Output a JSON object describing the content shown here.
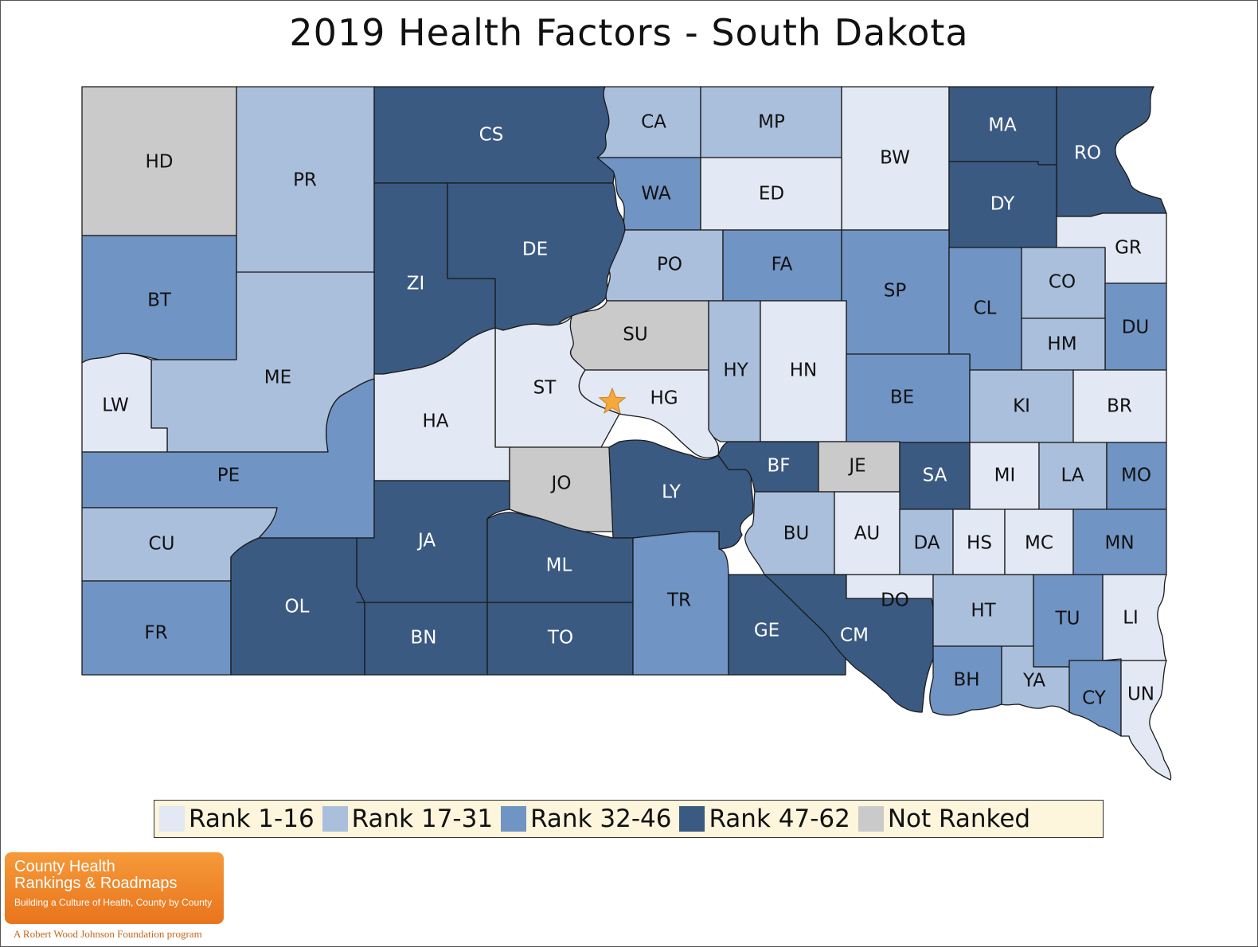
{
  "title": "2019 Health Factors - South Dakota",
  "colors": {
    "rank_1_16": "#e2e9f4",
    "rank_17_31": "#aabfdc",
    "rank_32_46": "#7094c4",
    "rank_47_62": "#3a5a82",
    "not_ranked": "#cacaca"
  },
  "legend": [
    {
      "label": "Rank 1-16",
      "color_key": "rank_1_16"
    },
    {
      "label": "Rank 17-31",
      "color_key": "rank_17_31"
    },
    {
      "label": "Rank 32-46",
      "color_key": "rank_32_46"
    },
    {
      "label": "Rank 47-62",
      "color_key": "rank_47_62"
    },
    {
      "label": "Not Ranked",
      "color_key": "not_ranked"
    }
  ],
  "counties": [
    {
      "abbr": "HD",
      "category": "not_ranked"
    },
    {
      "abbr": "PR",
      "category": "rank_17_31"
    },
    {
      "abbr": "CS",
      "category": "rank_47_62"
    },
    {
      "abbr": "CA",
      "category": "rank_17_31"
    },
    {
      "abbr": "MP",
      "category": "rank_17_31"
    },
    {
      "abbr": "BW",
      "category": "rank_1_16"
    },
    {
      "abbr": "MA",
      "category": "rank_47_62"
    },
    {
      "abbr": "RO",
      "category": "rank_47_62"
    },
    {
      "abbr": "WA",
      "category": "rank_32_46"
    },
    {
      "abbr": "ED",
      "category": "rank_1_16"
    },
    {
      "abbr": "DY",
      "category": "rank_47_62"
    },
    {
      "abbr": "GR",
      "category": "rank_1_16"
    },
    {
      "abbr": "BT",
      "category": "rank_32_46"
    },
    {
      "abbr": "ZI",
      "category": "rank_47_62"
    },
    {
      "abbr": "DE",
      "category": "rank_47_62"
    },
    {
      "abbr": "PO",
      "category": "rank_17_31"
    },
    {
      "abbr": "FA",
      "category": "rank_32_46"
    },
    {
      "abbr": "SP",
      "category": "rank_32_46"
    },
    {
      "abbr": "CL",
      "category": "rank_32_46"
    },
    {
      "abbr": "CO",
      "category": "rank_17_31"
    },
    {
      "abbr": "DU",
      "category": "rank_32_46"
    },
    {
      "abbr": "HM",
      "category": "rank_17_31"
    },
    {
      "abbr": "SU",
      "category": "not_ranked"
    },
    {
      "abbr": "HY",
      "category": "rank_17_31"
    },
    {
      "abbr": "HN",
      "category": "rank_1_16"
    },
    {
      "abbr": "ME",
      "category": "rank_17_31"
    },
    {
      "abbr": "LW",
      "category": "rank_1_16"
    },
    {
      "abbr": "ST",
      "category": "rank_1_16"
    },
    {
      "abbr": "HG",
      "category": "rank_1_16"
    },
    {
      "abbr": "HA",
      "category": "rank_1_16"
    },
    {
      "abbr": "BE",
      "category": "rank_32_46"
    },
    {
      "abbr": "KI",
      "category": "rank_17_31"
    },
    {
      "abbr": "BR",
      "category": "rank_1_16"
    },
    {
      "abbr": "PE",
      "category": "rank_32_46"
    },
    {
      "abbr": "JO",
      "category": "not_ranked"
    },
    {
      "abbr": "LY",
      "category": "rank_47_62"
    },
    {
      "abbr": "BF",
      "category": "rank_47_62"
    },
    {
      "abbr": "JE",
      "category": "not_ranked"
    },
    {
      "abbr": "SA",
      "category": "rank_47_62"
    },
    {
      "abbr": "MI",
      "category": "rank_1_16"
    },
    {
      "abbr": "LA",
      "category": "rank_17_31"
    },
    {
      "abbr": "MO",
      "category": "rank_32_46"
    },
    {
      "abbr": "CU",
      "category": "rank_17_31"
    },
    {
      "abbr": "JA",
      "category": "rank_47_62"
    },
    {
      "abbr": "ML",
      "category": "rank_47_62"
    },
    {
      "abbr": "BU",
      "category": "rank_17_31"
    },
    {
      "abbr": "AU",
      "category": "rank_1_16"
    },
    {
      "abbr": "DA",
      "category": "rank_17_31"
    },
    {
      "abbr": "HS",
      "category": "rank_1_16"
    },
    {
      "abbr": "MC",
      "category": "rank_1_16"
    },
    {
      "abbr": "MN",
      "category": "rank_32_46"
    },
    {
      "abbr": "FR",
      "category": "rank_32_46"
    },
    {
      "abbr": "OL",
      "category": "rank_47_62"
    },
    {
      "abbr": "BN",
      "category": "rank_47_62"
    },
    {
      "abbr": "TO",
      "category": "rank_47_62"
    },
    {
      "abbr": "TR",
      "category": "rank_32_46"
    },
    {
      "abbr": "GE",
      "category": "rank_47_62"
    },
    {
      "abbr": "CM",
      "category": "rank_47_62"
    },
    {
      "abbr": "DO",
      "category": "rank_1_16"
    },
    {
      "abbr": "HT",
      "category": "rank_17_31"
    },
    {
      "abbr": "TU",
      "category": "rank_32_46"
    },
    {
      "abbr": "LI",
      "category": "rank_1_16"
    },
    {
      "abbr": "BH",
      "category": "rank_32_46"
    },
    {
      "abbr": "YA",
      "category": "rank_17_31"
    },
    {
      "abbr": "CY",
      "category": "rank_32_46"
    },
    {
      "abbr": "UN",
      "category": "rank_1_16"
    }
  ],
  "capital_marker": {
    "icon": "star-icon",
    "color": "#f5a93a"
  },
  "logo": {
    "line1": "County Health",
    "line2": "Rankings & Roadmaps",
    "tagline": "Building a Culture of Health, County by County",
    "foundation": "A Robert Wood Johnson Foundation program"
  }
}
